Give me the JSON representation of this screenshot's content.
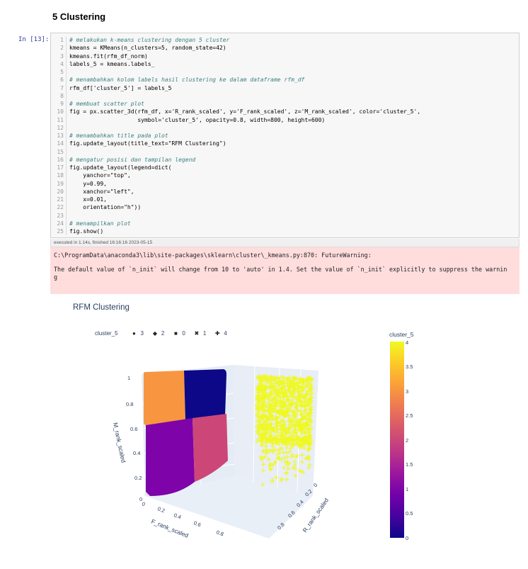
{
  "section": {
    "title": "5 Clustering"
  },
  "cell": {
    "prompt": "In [13]:",
    "exec_info": "executed in 1.14s, finished 16:16:16 2023-05-15",
    "lines": [
      {
        "n": "1",
        "t": "# melakukan k-means clustering dengan 5 cluster",
        "c": "cm"
      },
      {
        "n": "2",
        "t": "kmeans = KMeans(n_clusters=5, random_state=42)",
        "c": ""
      },
      {
        "n": "3",
        "t": "kmeans.fit(rfm_df_norm)",
        "c": ""
      },
      {
        "n": "4",
        "t": "labels_5 = kmeans.labels_",
        "c": ""
      },
      {
        "n": "5",
        "t": "",
        "c": ""
      },
      {
        "n": "6",
        "t": "# menambahkan kolom labels hasil clustering ke dalam dataframe rfm_df",
        "c": "cm"
      },
      {
        "n": "7",
        "t": "rfm_df['cluster_5'] = labels_5",
        "c": ""
      },
      {
        "n": "8",
        "t": "",
        "c": ""
      },
      {
        "n": "9",
        "t": "# membuat scatter plot",
        "c": "cm"
      },
      {
        "n": "10",
        "t": "fig = px.scatter_3d(rfm_df, x='R_rank_scaled', y='F_rank_scaled', z='M_rank_scaled', color='cluster_5',",
        "c": ""
      },
      {
        "n": "11",
        "t": "                    symbol='cluster_5', opacity=0.8, width=800, height=600)",
        "c": ""
      },
      {
        "n": "12",
        "t": "",
        "c": ""
      },
      {
        "n": "13",
        "t": "# menambahkan title pada plot",
        "c": "cm"
      },
      {
        "n": "14",
        "t": "fig.update_layout(title_text=\"RFM Clustering\")",
        "c": ""
      },
      {
        "n": "15",
        "t": "",
        "c": ""
      },
      {
        "n": "16",
        "t": "# mengatur posisi dan tampilan legend",
        "c": "cm"
      },
      {
        "n": "17",
        "t": "fig.update_layout(legend=dict(",
        "c": ""
      },
      {
        "n": "18",
        "t": "    yanchor=\"top\",",
        "c": ""
      },
      {
        "n": "19",
        "t": "    y=0.99,",
        "c": ""
      },
      {
        "n": "20",
        "t": "    xanchor=\"left\",",
        "c": ""
      },
      {
        "n": "21",
        "t": "    x=0.01,",
        "c": ""
      },
      {
        "n": "22",
        "t": "    orientation=\"h\"))",
        "c": ""
      },
      {
        "n": "23",
        "t": "",
        "c": ""
      },
      {
        "n": "24",
        "t": "# menampilkan plot",
        "c": "cm"
      },
      {
        "n": "25",
        "t": "fig.show()",
        "c": ""
      }
    ]
  },
  "warning": {
    "line1": "C:\\ProgramData\\anaconda3\\lib\\site-packages\\sklearn\\cluster\\_kmeans.py:870: FutureWarning:",
    "line2": "The default value of `n_init` will change from 10 to 'auto' in 1.4. Set the value of `n_init` explicitly to suppress the warnin",
    "line3": "g"
  },
  "plot": {
    "title": "RFM Clustering",
    "legend": {
      "title": "cluster_5",
      "items": [
        {
          "symbol": "●",
          "label": "3",
          "icon": "circle-icon"
        },
        {
          "symbol": "◆",
          "label": "2",
          "icon": "diamond-icon"
        },
        {
          "symbol": "■",
          "label": "0",
          "icon": "square-icon"
        },
        {
          "symbol": "✖",
          "label": "1",
          "icon": "x-icon"
        },
        {
          "symbol": "✚",
          "label": "4",
          "icon": "cross-icon"
        }
      ]
    },
    "colorbar": {
      "title": "cluster_5",
      "ticks": [
        "4",
        "3.5",
        "3",
        "2.5",
        "2",
        "1.5",
        "1",
        "0.5",
        "0"
      ]
    },
    "axes": {
      "z_title": "M_rank_scaled",
      "y_title": "F_rank_scaled",
      "x_title": "R_rank_scaled",
      "z_ticks": [
        "1",
        "0.8",
        "0.6",
        "0.4",
        "0.2",
        "0"
      ],
      "y_ticks": [
        "0",
        "0.2",
        "0.4",
        "0.6",
        "0.8"
      ],
      "x_ticks": [
        "0",
        "0.2",
        "0.4",
        "0.6",
        "0.8"
      ]
    },
    "colors": {
      "cluster_0": "#0d0887",
      "cluster_1": "#7e03a8",
      "cluster_2": "#cc4778",
      "cluster_3": "#f89540",
      "cluster_4": "#f0f921"
    }
  }
}
